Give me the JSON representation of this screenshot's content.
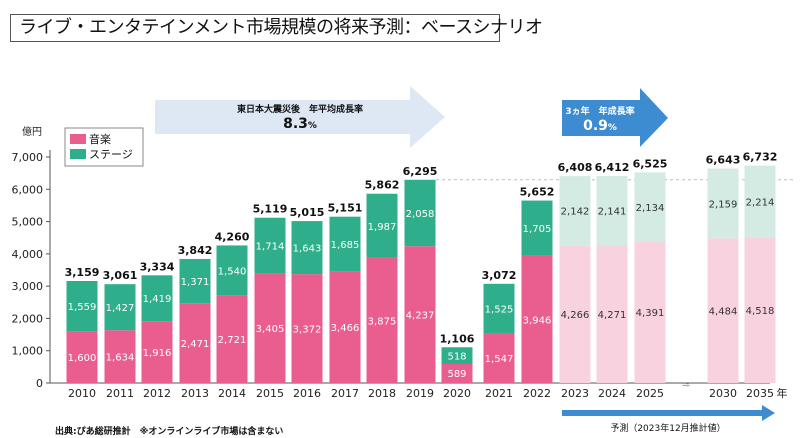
{
  "title": "ライブ・エンタテインメント市場規模の将来予測：ベースシナリオ",
  "chart_data": {
    "type": "bar",
    "stacked": true,
    "yunit": "億円",
    "xunit": "年",
    "ylim": [
      0,
      7000
    ],
    "yticks": [
      "0",
      "1,000",
      "2,000",
      "3,000",
      "4,000",
      "5,000",
      "6,000",
      "7,000"
    ],
    "categories": [
      "2010",
      "2011",
      "2012",
      "2013",
      "2014",
      "2015",
      "2016",
      "2017",
      "2018",
      "2019",
      "2020",
      "2021",
      "2022",
      "2023",
      "2024",
      "2025",
      "2030",
      "2035"
    ],
    "forecast_from": "2023",
    "axis_break_between": [
      "2025",
      "2030"
    ],
    "series": [
      {
        "name": "音楽",
        "color": "#e95d8f",
        "forecast_color": "#f8d3df",
        "values": [
          1600,
          1634,
          1916,
          2471,
          2721,
          3405,
          3372,
          3466,
          3875,
          4237,
          589,
          1547,
          3946,
          4266,
          4271,
          4391,
          4484,
          4518
        ],
        "labels": [
          "1,600",
          "1,634",
          "1,916",
          "2,471",
          "2,721",
          "3,405",
          "3,372",
          "3,466",
          "3,875",
          "4,237",
          "589",
          "1,547",
          "3,946",
          "4,266",
          "4,271",
          "4,391",
          "4,484",
          "4,518"
        ]
      },
      {
        "name": "ステージ",
        "color": "#2fae8c",
        "forecast_color": "#d3ebe2",
        "values": [
          1559,
          1427,
          1419,
          1371,
          1540,
          1714,
          1643,
          1685,
          1987,
          2058,
          518,
          1525,
          1705,
          2142,
          2141,
          2134,
          2159,
          2214
        ],
        "labels": [
          "1,559",
          "1,427",
          "1,419",
          "1,371",
          "1,540",
          "1,714",
          "1,643",
          "1,685",
          "1,987",
          "2,058",
          "518",
          "1,525",
          "1,705",
          "2,142",
          "2,141",
          "2,134",
          "2,159",
          "2,214"
        ]
      }
    ],
    "totals": [
      "3,159",
      "3,061",
      "3,334",
      "3,842",
      "4,260",
      "5,119",
      "5,015",
      "5,151",
      "5,862",
      "6,295",
      "1,106",
      "3,072",
      "5,652",
      "6,408",
      "6,412",
      "6,525",
      "6,643",
      "6,732"
    ],
    "reference_line_value": 6295,
    "annotations": {
      "cagr_past": {
        "label": "東日本大震災後　年平均成長率",
        "value": "8.3",
        "unit": "%",
        "color": "#dde8f4"
      },
      "cagr_future": {
        "label": "3ヵ年　年成長率",
        "value": "0.9",
        "unit": "%",
        "color": "#3d8bd1"
      },
      "forecast": {
        "label": "予測（2023年12月推計値）",
        "color": "#3d8bd1"
      }
    },
    "source": "出典:ぴあ総研推計　※オンラインライブ市場は含まない"
  }
}
